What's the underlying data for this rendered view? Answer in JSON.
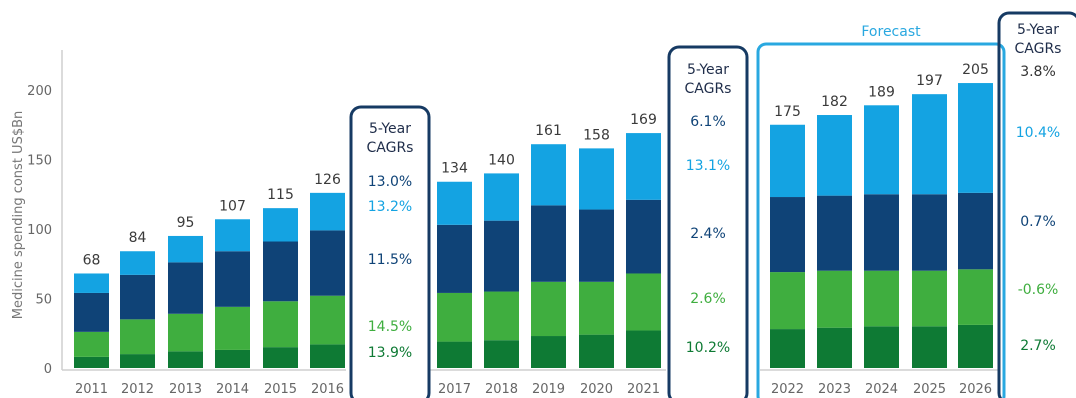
{
  "colors": {
    "light_blue": "#14a3e2",
    "dark_blue": "#0f4377",
    "light_green": "#3fae3f",
    "dark_green": "#0e7a34",
    "box_dark": "#163a63",
    "box_forecast": "#29a8e0"
  },
  "chart_data": {
    "type": "bar",
    "stacked": true,
    "ylabel": "Medicine spending const US$Bn",
    "ylim": [
      0,
      230
    ],
    "yticks": [
      0,
      50,
      100,
      150,
      200
    ],
    "grid": false,
    "categories": [
      "2011",
      "2012",
      "2013",
      "2014",
      "2015",
      "2016",
      "2017",
      "2018",
      "2019",
      "2020",
      "2021",
      "2022",
      "2023",
      "2024",
      "2025",
      "2026"
    ],
    "segment_colors": [
      "#0e7a34",
      "#3fae3f",
      "#0f4377",
      "#14a3e2"
    ],
    "totals": [
      "68",
      "84",
      "95",
      "107",
      "115",
      "126",
      "134",
      "140",
      "161",
      "158",
      "169",
      "175",
      "182",
      "189",
      "197",
      "205"
    ],
    "series": [
      {
        "values": [
          8,
          10,
          12,
          13,
          15,
          17,
          19,
          20,
          23,
          24,
          27,
          28,
          29,
          30,
          30,
          31
        ]
      },
      {
        "values": [
          18,
          25,
          27,
          31,
          33,
          35,
          35,
          35,
          39,
          38,
          41,
          41,
          41,
          40,
          40,
          40
        ]
      },
      {
        "values": [
          28,
          32,
          37,
          40,
          43,
          47,
          49,
          51,
          55,
          52,
          53,
          54,
          54,
          55,
          55,
          55
        ]
      },
      {
        "values": [
          14,
          17,
          19,
          23,
          24,
          27,
          31,
          34,
          44,
          44,
          48,
          52,
          58,
          64,
          72,
          79
        ]
      }
    ],
    "cagr_title_line1": "5-Year",
    "cagr_title_line2": "CAGRs",
    "cagr_groups": [
      {
        "values": [
          "13.0%",
          "13.2%",
          "11.5%",
          "14.5%",
          "13.9%"
        ]
      },
      {
        "values": [
          "6.1%",
          "13.1%",
          "2.4%",
          "2.6%",
          "10.2%"
        ]
      },
      {
        "values": [
          "3.8%",
          "10.4%",
          "0.7%",
          "-0.6%",
          "2.7%"
        ]
      }
    ],
    "forecast_label": "Forecast"
  }
}
